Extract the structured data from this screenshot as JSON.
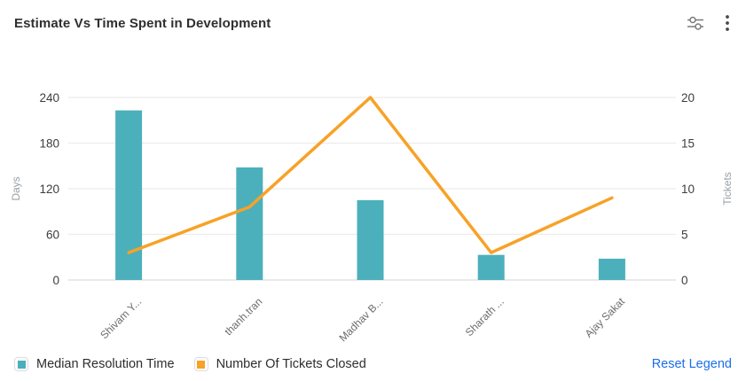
{
  "header": {
    "title": "Estimate Vs Time Spent in Development",
    "icons": [
      {
        "name": "filter-sliders-icon"
      },
      {
        "name": "kebab-menu-icon"
      }
    ]
  },
  "chart_data": {
    "type": "combo-bar-line",
    "title": "Estimate Vs Time Spent in Development",
    "categories": [
      "Shivam Y...",
      "thanh.tran",
      "Madhav B...",
      "Sharath ...",
      "Ajay Sakat"
    ],
    "series": [
      {
        "name": "Median Resolution Time",
        "type": "bar",
        "axis": "left",
        "color": "#4BB0BB",
        "values": [
          223,
          148,
          105,
          33,
          28
        ]
      },
      {
        "name": "Number Of Tickets Closed",
        "type": "line",
        "axis": "right",
        "color": "#F7A227",
        "values": [
          3,
          8,
          20,
          3,
          9
        ]
      }
    ],
    "left_axis": {
      "label": "Days",
      "min": 0,
      "max": 240,
      "ticks": [
        0,
        60,
        120,
        180,
        240
      ]
    },
    "right_axis": {
      "label": "Tickets",
      "min": 0,
      "max": 20,
      "ticks": [
        0,
        5,
        10,
        15,
        20
      ]
    },
    "grid": true,
    "legend_position": "bottom-left"
  },
  "legend": {
    "items": [
      {
        "label": "Median Resolution Time",
        "color": "#4BB0BB"
      },
      {
        "label": "Number Of Tickets Closed",
        "color": "#F7A227"
      }
    ],
    "reset_label": "Reset Legend",
    "reset_color": "#1A6FE8"
  },
  "colors": {
    "bar": "#4BB0BB",
    "line": "#F7A227",
    "gridline": "#ececec",
    "baseline": "#dcdcdc",
    "icon": "#666666"
  }
}
